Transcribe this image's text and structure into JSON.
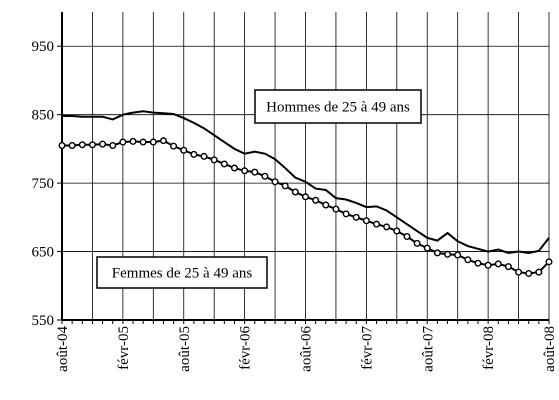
{
  "chart_data": {
    "type": "line",
    "categories": [
      "août-04",
      null,
      null,
      null,
      null,
      null,
      "févr-05",
      null,
      null,
      null,
      null,
      null,
      "août-05",
      null,
      null,
      null,
      null,
      null,
      "févr-06",
      null,
      null,
      null,
      null,
      null,
      "août-06",
      null,
      null,
      null,
      null,
      null,
      "févr-07",
      null,
      null,
      null,
      null,
      null,
      "août-07",
      null,
      null,
      null,
      null,
      null,
      "févr-08",
      null,
      null,
      null,
      null,
      null,
      "août-08"
    ],
    "series": [
      {
        "name": "Hommes de 25 à 49 ans",
        "color": "#000000",
        "marker": "none",
        "values": [
          848,
          848,
          847,
          847,
          847,
          843,
          850,
          853,
          855,
          853,
          852,
          851,
          845,
          838,
          830,
          820,
          810,
          800,
          793,
          796,
          793,
          785,
          772,
          758,
          752,
          742,
          740,
          728,
          726,
          721,
          715,
          716,
          710,
          700,
          690,
          680,
          670,
          666,
          677,
          665,
          658,
          654,
          650,
          653,
          648,
          650,
          648,
          651,
          670
        ]
      },
      {
        "name": "Femmes de 25 à 49 ans",
        "color": "#000000",
        "marker": "circle",
        "values": [
          805,
          805,
          806,
          806,
          807,
          805,
          810,
          811,
          810,
          810,
          812,
          804,
          798,
          792,
          789,
          784,
          778,
          772,
          768,
          766,
          760,
          752,
          746,
          737,
          730,
          725,
          718,
          712,
          705,
          700,
          695,
          690,
          686,
          680,
          672,
          662,
          655,
          648,
          646,
          645,
          638,
          633,
          630,
          632,
          628,
          620,
          618,
          620,
          635
        ]
      }
    ],
    "ylim": [
      550,
      1000
    ],
    "yticks": [
      550,
      650,
      750,
      850,
      950
    ],
    "grid": true
  }
}
